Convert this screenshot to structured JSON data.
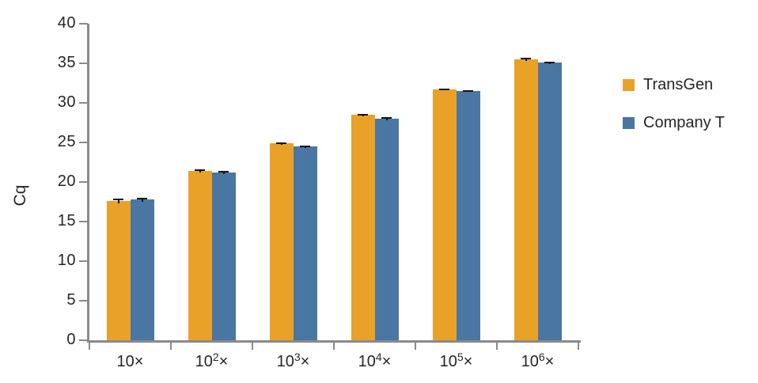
{
  "chart_data": {
    "type": "bar",
    "title": "",
    "xlabel": "",
    "ylabel": "Cq",
    "ylim": [
      0,
      40
    ],
    "yticks": [
      0,
      5,
      10,
      15,
      20,
      25,
      30,
      35,
      40
    ],
    "grid": false,
    "legend_position": "right",
    "axis_color": "#8a8a8a",
    "text_color": "#262626",
    "error_bar_color": "#141414",
    "categories": [
      {
        "base": "10",
        "exp": "",
        "suffix": "×"
      },
      {
        "base": "10",
        "exp": "2",
        "suffix": "×"
      },
      {
        "base": "10",
        "exp": "3",
        "suffix": "×"
      },
      {
        "base": "10",
        "exp": "4",
        "suffix": "×"
      },
      {
        "base": "10",
        "exp": "5",
        "suffix": "×"
      },
      {
        "base": "10",
        "exp": "6",
        "suffix": "×"
      }
    ],
    "series": [
      {
        "name": "TransGen",
        "color": "#e9a227",
        "values": [
          17.6,
          21.4,
          24.9,
          28.5,
          31.7,
          35.5
        ],
        "errors": [
          0.3,
          0.2,
          0.15,
          0.15,
          0.1,
          0.2
        ]
      },
      {
        "name": "Company T",
        "color": "#4a76a4",
        "values": [
          17.8,
          21.2,
          24.5,
          28.0,
          31.5,
          35.1
        ],
        "errors": [
          0.25,
          0.2,
          0.15,
          0.2,
          0.1,
          0.15
        ]
      }
    ]
  }
}
